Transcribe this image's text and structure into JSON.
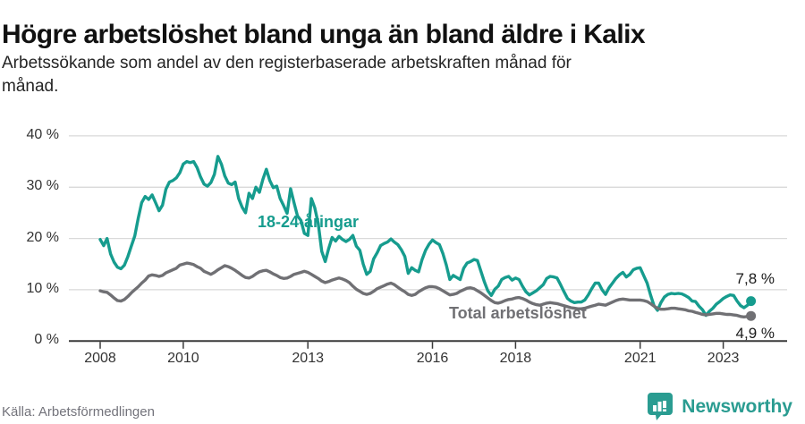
{
  "header": {
    "title": "Högre arbetslöshet bland unga än bland äldre i Kalix",
    "subtitle": "Arbetssökande som andel av den registerbaserade arbetskraften månad för\nmånad."
  },
  "footer": {
    "source": "Källa: Arbetsförmedlingen",
    "logo_text": "Newsworthy"
  },
  "colors": {
    "accent_teal": "#169c8e",
    "line_gray": "#707074",
    "grid": "#d9d9d9",
    "axis": "#3a3a3a",
    "logo_teal": "#2a9c91",
    "title_text": "#111111",
    "end_label_text": "#1a1a1a"
  },
  "chart_data": {
    "type": "line",
    "title": "Högre arbetslöshet bland unga än bland äldre i Kalix",
    "subtitle": "Arbetssökande som andel av den registerbaserade arbetskraften månad för månad.",
    "x_unit": "month",
    "x_start": "2008-01",
    "x_end": "2023-09",
    "ylim": [
      0,
      40
    ],
    "grid": true,
    "y_ticks": [
      {
        "value": 40,
        "label": "40 %"
      },
      {
        "value": 30,
        "label": "30 %"
      },
      {
        "value": 20,
        "label": "20 %"
      },
      {
        "value": 10,
        "label": "10 %"
      },
      {
        "value": 0,
        "label": "0 %"
      }
    ],
    "x_ticks": [
      {
        "label": "2008",
        "month_index": 0
      },
      {
        "label": "2010",
        "month_index": 24
      },
      {
        "label": "2013",
        "month_index": 60
      },
      {
        "label": "2016",
        "month_index": 96
      },
      {
        "label": "2018",
        "month_index": 120
      },
      {
        "label": "2021",
        "month_index": 156
      },
      {
        "label": "2023",
        "month_index": 180
      }
    ],
    "series": [
      {
        "name": "18-24-åringar",
        "color": "#169c8e",
        "end_label": "7,8 %",
        "end_value": 7.8,
        "values": [
          19.8,
          18.6,
          20.0,
          17.0,
          15.4,
          14.4,
          14.1,
          14.8,
          16.5,
          18.5,
          20.5,
          24.0,
          27.0,
          28.2,
          27.6,
          28.5,
          27.0,
          25.4,
          26.5,
          29.6,
          31.0,
          31.3,
          31.8,
          32.8,
          34.5,
          35.0,
          34.8,
          35.0,
          33.8,
          32.0,
          30.6,
          30.2,
          30.9,
          32.5,
          36.0,
          34.5,
          32.2,
          30.8,
          30.5,
          31.0,
          27.8,
          26.1,
          25.0,
          28.8,
          27.8,
          30.0,
          29.0,
          31.5,
          33.5,
          31.3,
          29.9,
          30.2,
          27.8,
          26.4,
          24.9,
          29.7,
          27.0,
          24.4,
          23.5,
          21.0,
          20.6,
          27.8,
          26.0,
          22.9,
          17.5,
          15.5,
          18.0,
          20.2,
          19.5,
          20.4,
          19.8,
          19.4,
          19.8,
          20.6,
          18.5,
          17.7,
          15.0,
          13.0,
          13.6,
          16.0,
          17.2,
          18.6,
          19.0,
          19.3,
          19.9,
          19.3,
          18.8,
          17.8,
          16.5,
          13.2,
          14.3,
          13.8,
          13.5,
          15.9,
          17.7,
          18.9,
          19.7,
          19.2,
          18.8,
          17.1,
          14.8,
          12.0,
          12.8,
          12.4,
          12.0,
          14.2,
          15.2,
          15.5,
          15.9,
          15.7,
          13.6,
          11.5,
          9.8,
          8.9,
          10.1,
          10.7,
          12.0,
          12.4,
          12.6,
          11.9,
          12.3,
          12.0,
          10.7,
          9.6,
          9.0,
          9.4,
          9.8,
          10.4,
          11.0,
          12.2,
          12.6,
          12.5,
          12.3,
          11.0,
          9.6,
          8.3,
          7.8,
          7.5,
          7.6,
          7.6,
          8.0,
          9.0,
          10.2,
          11.3,
          11.3,
          10.0,
          9.1,
          10.4,
          11.3,
          12.2,
          12.9,
          13.4,
          12.5,
          13.0,
          13.9,
          14.2,
          14.3,
          12.8,
          11.3,
          9.0,
          6.9,
          6.0,
          7.5,
          8.6,
          9.1,
          9.3,
          9.2,
          9.3,
          9.2,
          8.9,
          8.5,
          7.8,
          7.7,
          6.8,
          6.1,
          5.0,
          5.8,
          6.4,
          7.2,
          7.7,
          8.3,
          8.7,
          9.0,
          8.9,
          7.8,
          6.9,
          6.5,
          7.0,
          7.8
        ]
      },
      {
        "name": "Total arbetslöshet",
        "color": "#707074",
        "end_label": "4,9 %",
        "end_value": 4.9,
        "values": [
          9.8,
          9.6,
          9.5,
          9.0,
          8.4,
          7.9,
          7.8,
          8.1,
          8.7,
          9.4,
          10.0,
          10.6,
          11.3,
          11.9,
          12.7,
          12.9,
          12.8,
          12.6,
          12.8,
          13.3,
          13.6,
          13.9,
          14.2,
          14.8,
          15.0,
          15.2,
          15.1,
          14.9,
          14.5,
          14.2,
          13.6,
          13.3,
          13.0,
          13.4,
          13.9,
          14.3,
          14.7,
          14.5,
          14.2,
          13.8,
          13.3,
          12.8,
          12.4,
          12.3,
          12.6,
          13.1,
          13.5,
          13.7,
          13.8,
          13.5,
          13.1,
          12.8,
          12.4,
          12.2,
          12.3,
          12.6,
          13.0,
          13.2,
          13.4,
          13.6,
          13.4,
          13.0,
          12.6,
          12.2,
          11.7,
          11.4,
          11.6,
          11.9,
          12.1,
          12.3,
          12.1,
          11.8,
          11.4,
          10.7,
          10.1,
          9.7,
          9.3,
          9.1,
          9.3,
          9.7,
          10.2,
          10.5,
          10.8,
          11.1,
          11.3,
          11.0,
          10.5,
          10.0,
          9.6,
          9.1,
          8.9,
          9.1,
          9.6,
          10.0,
          10.4,
          10.6,
          10.6,
          10.5,
          10.2,
          9.8,
          9.4,
          9.0,
          9.1,
          9.3,
          9.7,
          10.0,
          10.3,
          10.4,
          10.2,
          9.8,
          9.4,
          8.9,
          8.4,
          7.9,
          7.5,
          7.4,
          7.6,
          7.9,
          8.1,
          8.2,
          8.4,
          8.5,
          8.3,
          8.0,
          7.6,
          7.3,
          7.1,
          7.0,
          7.2,
          7.4,
          7.5,
          7.4,
          7.3,
          7.1,
          6.9,
          6.7,
          6.5,
          6.4,
          6.3,
          6.3,
          6.4,
          6.6,
          6.8,
          7.0,
          7.2,
          7.1,
          7.0,
          7.3,
          7.6,
          7.9,
          8.1,
          8.2,
          8.1,
          8.0,
          8.0,
          8.0,
          8.0,
          7.9,
          7.7,
          7.3,
          6.8,
          6.4,
          6.2,
          6.2,
          6.3,
          6.4,
          6.4,
          6.3,
          6.2,
          6.1,
          5.9,
          5.8,
          5.6,
          5.4,
          5.2,
          5.1,
          5.2,
          5.3,
          5.4,
          5.4,
          5.3,
          5.2,
          5.2,
          5.1,
          5.0,
          4.8,
          4.7,
          4.8,
          4.9
        ]
      }
    ],
    "legend_position": "inline-labels"
  }
}
